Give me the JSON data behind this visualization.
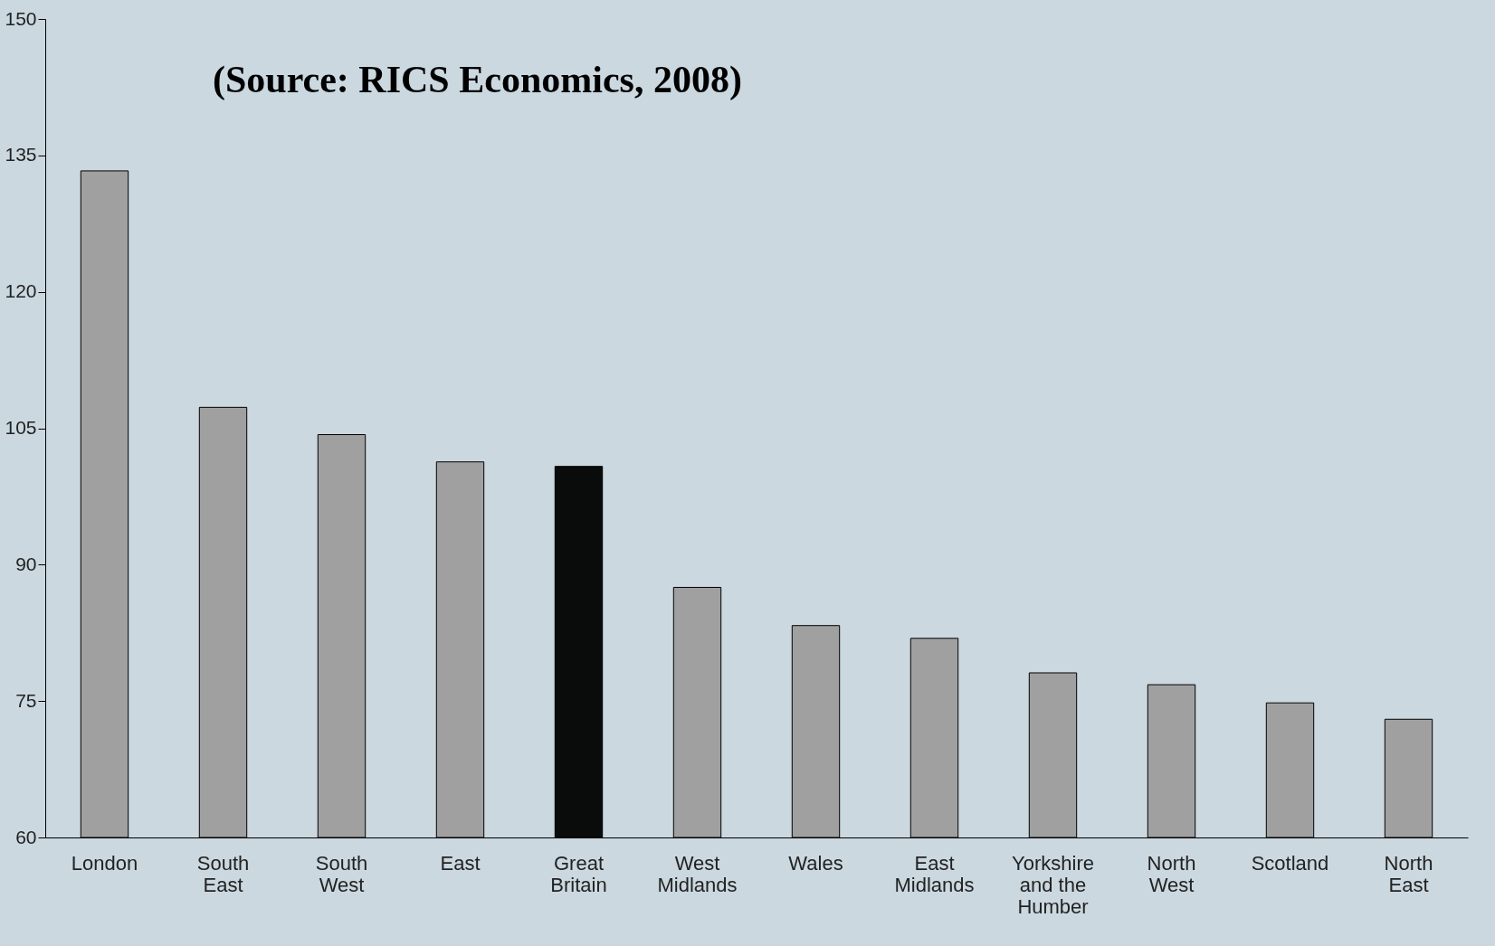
{
  "chart_data": {
    "type": "bar",
    "categories": [
      "London",
      "South East",
      "South West",
      "East",
      "Great Britain",
      "West Midlands",
      "Wales",
      "East Midlands",
      "Yorkshire and the Humber",
      "North West",
      "Scotland",
      "North East"
    ],
    "values": [
      133.3,
      107.3,
      104.3,
      101.3,
      100.8,
      87.5,
      83.3,
      81.9,
      78.1,
      76.8,
      74.8,
      73.0
    ],
    "colors": [
      "#a0a0a0",
      "#a0a0a0",
      "#a0a0a0",
      "#a0a0a0",
      "#0a0c0c",
      "#a0a0a0",
      "#a0a0a0",
      "#a0a0a0",
      "#a0a0a0",
      "#a0a0a0",
      "#a0a0a0",
      "#a0a0a0"
    ],
    "ylim": [
      60,
      150
    ],
    "yticks": [
      60,
      75,
      90,
      105,
      120,
      135,
      150
    ],
    "grid": false,
    "legend": false,
    "annotations": [
      "(Source: RICS Economics, 2008)"
    ]
  }
}
